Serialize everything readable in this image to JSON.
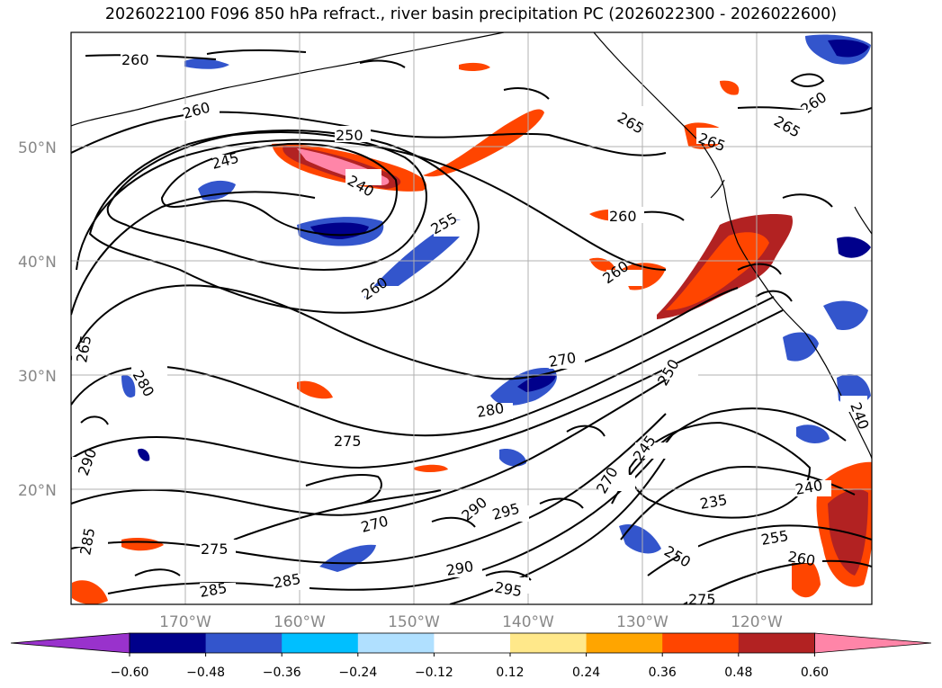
{
  "title": "2026022100 F096 850 hPa refract., river basin precipitation PC (2026022300 - 2026022600)",
  "latitude_labels": [
    "50°N",
    "40°N",
    "30°N",
    "20°N"
  ],
  "longitude_labels": [
    "170°W",
    "160°W",
    "150°W",
    "140°W",
    "130°W",
    "120°W"
  ],
  "colorbar": {
    "ticks": [
      "−0.60",
      "−0.48",
      "−0.36",
      "−0.24",
      "−0.12",
      "0.12",
      "0.24",
      "0.36",
      "0.48",
      "0.60"
    ],
    "colors": [
      "#9932cc",
      "#00008b",
      "#3355cc",
      "#00bfff",
      "#b0e0ff",
      "#ffffff",
      "#ffe88a",
      "#ffa500",
      "#ff4500",
      "#b22222",
      "#ff85a8"
    ]
  },
  "contour_labels": [
    "260",
    "260",
    "250",
    "245",
    "240",
    "255",
    "260",
    "265",
    "260",
    "260",
    "265",
    "260",
    "265",
    "270",
    "280",
    "280",
    "275",
    "265",
    "290",
    "285",
    "275",
    "270",
    "285",
    "290",
    "295",
    "290",
    "295",
    "270",
    "245",
    "250",
    "235",
    "240",
    "255",
    "260",
    "250",
    "240",
    "275",
    "285"
  ]
}
